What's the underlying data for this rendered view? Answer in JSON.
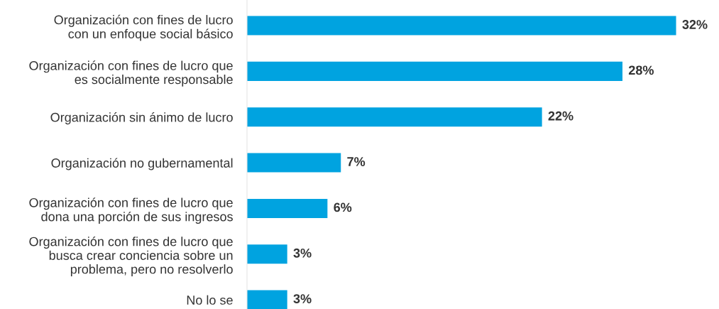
{
  "chart_data": {
    "type": "bar",
    "orientation": "horizontal",
    "categories": [
      "Organización con fines de lucro\ncon un enfoque social básico",
      "Organización con fines de lucro que\nes socialmente responsable",
      "Organización sin ánimo de lucro",
      "Organización no gubernamental",
      "Organización con fines de lucro que\ndona una porción de sus ingresos",
      "Organización con fines de lucro que\nbusca crear conciencia sobre un\nproblema, pero no resolverlo",
      "No lo se"
    ],
    "values": [
      32,
      28,
      22,
      7,
      6,
      3,
      3
    ],
    "value_labels": [
      "32%",
      "28%",
      "22%",
      "7%",
      "6%",
      "3%",
      "3%"
    ],
    "color": "#00a3e0",
    "grid": false,
    "legend": false
  }
}
